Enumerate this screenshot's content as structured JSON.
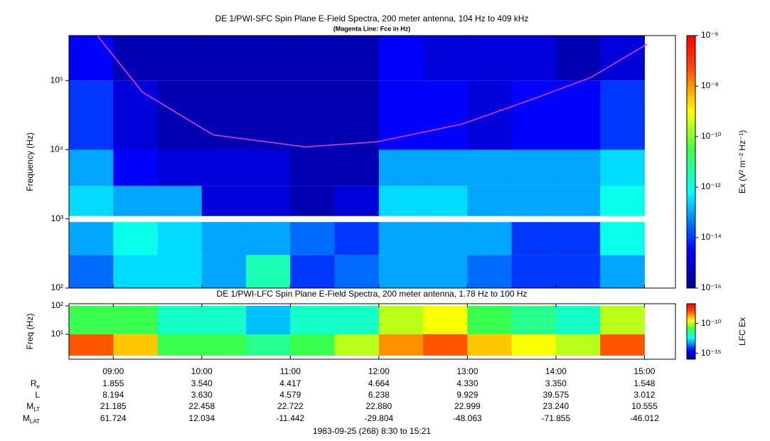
{
  "chart_data": [
    {
      "type": "heatmap",
      "title": "DE 1/PWI-SFC  Spin Plane E-Field Spectra, 200 meter antenna, 104 Hz to 409 kHz",
      "subtitle": "(Magenta Line: Fce in Hz)",
      "y_label": "Frequency (Hz)",
      "ylog": true,
      "xlim": [
        8.5,
        15.35
      ],
      "xticks": [
        {
          "value": 9,
          "label": "09:00"
        },
        {
          "value": 10,
          "label": "10:00"
        },
        {
          "value": 11,
          "label": "11:00"
        },
        {
          "value": 12,
          "label": "12:00"
        },
        {
          "value": 13,
          "label": "13:00"
        },
        {
          "value": 14,
          "label": "14:00"
        },
        {
          "value": 15,
          "label": "15:00"
        }
      ],
      "ylim": [
        100,
        447000
      ],
      "yticks": [
        {
          "value": 100,
          "label": "10²"
        },
        {
          "value": 1000,
          "label": "10³"
        },
        {
          "value": 10000,
          "label": "10⁴"
        },
        {
          "value": 100000,
          "label": "10⁵"
        }
      ],
      "x_edges": [
        8.5,
        9.0,
        9.5,
        10.0,
        10.5,
        11.0,
        11.5,
        12.0,
        12.5,
        13.0,
        13.5,
        14.0,
        14.5,
        15.0
      ],
      "y_edges": [
        100,
        300,
        900,
        1100,
        3000,
        10000,
        100000,
        447000
      ],
      "z": [
        [
          3e-14,
          3e-13,
          3e-13,
          1e-13,
          3e-12,
          1e-14,
          3e-14,
          1e-13,
          1e-13,
          3e-14,
          1e-14,
          1e-14,
          1e-13
        ],
        [
          1e-13,
          1e-12,
          3e-13,
          1e-13,
          1e-13,
          3e-14,
          1e-14,
          1e-13,
          1e-13,
          1e-13,
          1e-14,
          1e-14,
          1e-12
        ],
        [
          null,
          null,
          null,
          null,
          null,
          null,
          null,
          null,
          null,
          null,
          null,
          null,
          null
        ],
        [
          3e-13,
          1e-13,
          1e-13,
          1e-15,
          1e-15,
          3e-16,
          1e-15,
          3e-13,
          3e-13,
          1e-13,
          1e-13,
          1e-13,
          1e-12
        ],
        [
          1e-13,
          3e-15,
          1e-15,
          1e-15,
          1e-15,
          3e-16,
          3e-16,
          1e-13,
          1e-13,
          1e-13,
          1e-13,
          1e-13,
          3e-13
        ],
        [
          1e-14,
          1e-15,
          3e-16,
          3e-16,
          3e-16,
          3e-16,
          3e-16,
          3e-15,
          3e-15,
          1e-15,
          3e-15,
          3e-15,
          1e-14
        ],
        [
          3e-15,
          3e-16,
          3e-16,
          3e-16,
          3e-16,
          3e-16,
          3e-16,
          3e-15,
          1e-15,
          1e-15,
          1e-15,
          3e-16,
          1e-15
        ]
      ],
      "fce": {
        "color": "#e03ce0",
        "x": [
          8.82,
          9.33,
          10.13,
          11.17,
          11.98,
          12.94,
          13.74,
          14.39,
          15.03
        ],
        "y": [
          447000,
          68000,
          16400,
          11000,
          13000,
          23500,
          54000,
          110000,
          336000
        ]
      },
      "colorbar": {
        "label": "Ex (V² m⁻² Hz⁻¹)",
        "lim": [
          1e-16,
          1e-06
        ],
        "ticks": [
          {
            "value": 1e-06,
            "label": "10⁻⁶"
          },
          {
            "value": 1e-08,
            "label": "10⁻⁸"
          },
          {
            "value": 1e-10,
            "label": "10⁻¹⁰"
          },
          {
            "value": 1e-12,
            "label": "10⁻¹²"
          },
          {
            "value": 1e-14,
            "label": "10⁻¹⁴"
          },
          {
            "value": 1e-16,
            "label": "10⁻¹⁶"
          }
        ]
      }
    },
    {
      "type": "heatmap",
      "title": "DE 1/PWI-LFC  Spin Plane E-Field Spectra, 200 meter antenna, 1.78 Hz to 100 Hz",
      "y_label": "Freq (Hz)",
      "ylog": true,
      "xlim": [
        8.5,
        15.35
      ],
      "ylim": [
        1.33,
        119
      ],
      "yticks": [
        {
          "value": 10,
          "label": "10¹"
        },
        {
          "value": 100,
          "label": "10²"
        }
      ],
      "x_edges": [
        8.5,
        9.0,
        9.5,
        10.0,
        10.5,
        11.0,
        11.5,
        12.0,
        12.5,
        13.0,
        13.5,
        14.0,
        14.5,
        15.0
      ],
      "y_edges": [
        1.78,
        10,
        100
      ],
      "z": [
        [
          1e-08,
          1e-09,
          1e-11,
          1e-11,
          3e-12,
          1e-11,
          1e-10,
          3e-09,
          1e-08,
          1e-09,
          3e-10,
          1e-10,
          1e-08
        ],
        [
          1e-11,
          1e-11,
          1e-12,
          1e-12,
          1e-13,
          1e-12,
          1e-12,
          1e-10,
          3e-10,
          1e-11,
          3e-12,
          1e-12,
          1e-10
        ]
      ],
      "colorbar": {
        "label": "LFC Ex",
        "lim": [
          1e-16,
          2e-07
        ],
        "ticks": [
          {
            "value": 1e-10,
            "label": "10⁻¹⁰"
          },
          {
            "value": 1e-15,
            "label": "10⁻¹⁵"
          }
        ]
      }
    }
  ],
  "ephemeris": {
    "labels": [
      {
        "main": "R",
        "sub": "e"
      },
      {
        "main": "L"
      },
      {
        "main": "M",
        "sub": "LT"
      },
      {
        "main": "M",
        "sub": "LAT"
      }
    ],
    "rows": [
      [
        "1.855",
        "3.540",
        "4.417",
        "4.664",
        "4.330",
        "3.350",
        "1.548"
      ],
      [
        "8.194",
        "3.630",
        "4.579",
        "6.238",
        "9.929",
        "39.575",
        "3.012"
      ],
      [
        "21.185",
        "22.458",
        "22.722",
        "22.880",
        "22.999",
        "23.240",
        "10.555"
      ],
      [
        "61.724",
        "12.034",
        "-11.442",
        "-29.804",
        "-48.063",
        "-71.855",
        "-46.012"
      ]
    ]
  },
  "footer": "1983-09-25 (268) 8:30 to 15:21"
}
